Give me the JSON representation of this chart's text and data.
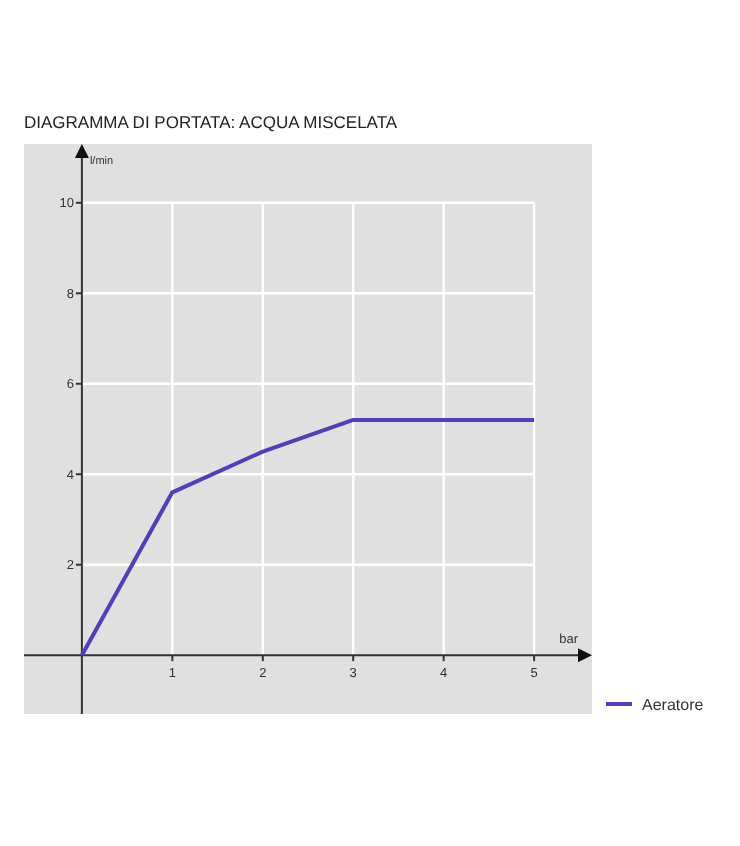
{
  "chart_data": {
    "type": "line",
    "title": "DIAGRAMMA DI PORTATA: ACQUA MISCELATA",
    "xlabel": "bar",
    "ylabel": "l/min",
    "x": [
      0,
      1,
      2,
      3,
      4,
      5
    ],
    "series": [
      {
        "name": "Aeratore",
        "color": "#5040b8",
        "values": [
          0,
          3.6,
          4.5,
          5.2,
          5.2,
          5.2
        ]
      }
    ],
    "xlim": [
      -0.64,
      5.64
    ],
    "ylim": [
      -1.3,
      11.3
    ],
    "xticks": [
      1,
      2,
      3,
      4,
      5
    ],
    "yticks": [
      2,
      4,
      6,
      8,
      10
    ],
    "grid": true,
    "legend": "bottom right",
    "marker": "none",
    "line_style": "solid"
  }
}
